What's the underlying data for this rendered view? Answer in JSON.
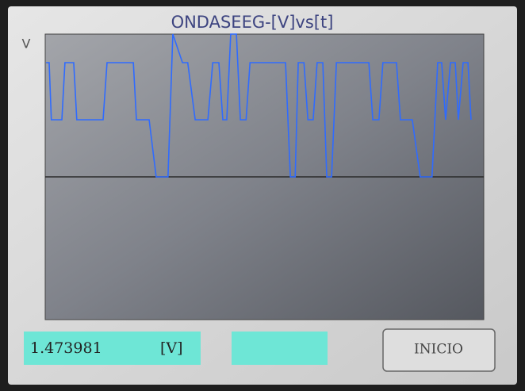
{
  "chart_data": {
    "type": "line",
    "title": "ONDASEEG-[V]vs[t]",
    "y_label": "V",
    "x": [
      0.2,
      0.9,
      1.4,
      3.8,
      4.5,
      6.5,
      7.2,
      13.2,
      14.1,
      20.1,
      20.8,
      23.7,
      25.3,
      28.0,
      29.1,
      31.3,
      32.5,
      34.2,
      37.1,
      38.2,
      39.6,
      40.5,
      41.4,
      42.3,
      43.6,
      44.5,
      45.8,
      46.7,
      54.8,
      55.9,
      57.0,
      57.7,
      59.0,
      59.9,
      61.1,
      62.0,
      63.3,
      64.2,
      65.3,
      66.4,
      73.8,
      74.7,
      76.1,
      77.0,
      80.1,
      81.0,
      83.7,
      85.5,
      88.2,
      89.5,
      90.4,
      91.3,
      92.4,
      93.5,
      94.2,
      95.3,
      96.4,
      97.1
    ],
    "series": [
      {
        "color": "#2f6bff",
        "values": [
          0.8,
          0.8,
          0.4,
          0.4,
          0.8,
          0.8,
          0.4,
          0.4,
          0.8,
          0.8,
          0.4,
          0.4,
          0,
          0,
          1.0,
          0.8,
          0.8,
          0.4,
          0.4,
          0.8,
          0.8,
          0.4,
          0.4,
          1.0,
          1.0,
          0.4,
          0.4,
          0.8,
          0.8,
          0,
          0,
          0.8,
          0.8,
          0.4,
          0.4,
          0.8,
          0.8,
          0,
          0,
          0.8,
          0.8,
          0.4,
          0.4,
          0.8,
          0.8,
          0.4,
          0.4,
          0,
          0,
          0.8,
          0.8,
          0.4,
          0.8,
          0.8,
          0.4,
          0.8,
          0.8,
          0.4
        ]
      }
    ],
    "xlim": [
      0,
      100
    ],
    "ylim": [
      -1,
      1
    ]
  },
  "readout": {
    "value": "1.473981",
    "unit": "[V]"
  },
  "button": {
    "label": "INICIO"
  }
}
